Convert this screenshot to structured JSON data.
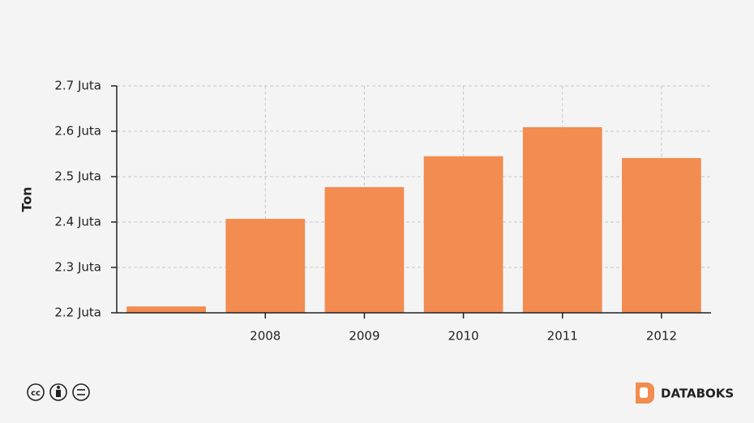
{
  "chart_data": {
    "type": "bar",
    "y_label": "Ton",
    "categories": [
      null,
      "2008",
      "2009",
      "2010",
      "2011",
      "2012"
    ],
    "values": [
      2.214,
      2.407,
      2.477,
      2.545,
      2.609,
      2.541
    ],
    "color": "#f28c50",
    "ylim": [
      2.2,
      2.7
    ],
    "yticks": [
      {
        "value": 2.2,
        "label": "2.2 Juta"
      },
      {
        "value": 2.3,
        "label": "2.3 Juta"
      },
      {
        "value": 2.4,
        "label": "2.4 Juta"
      },
      {
        "value": 2.5,
        "label": "2.5 Juta"
      },
      {
        "value": 2.6,
        "label": "2.6 Juta"
      },
      {
        "value": 2.7,
        "label": "2.7 Juta"
      }
    ],
    "grid": true
  },
  "footer": {
    "brand": "DATABOKS"
  }
}
